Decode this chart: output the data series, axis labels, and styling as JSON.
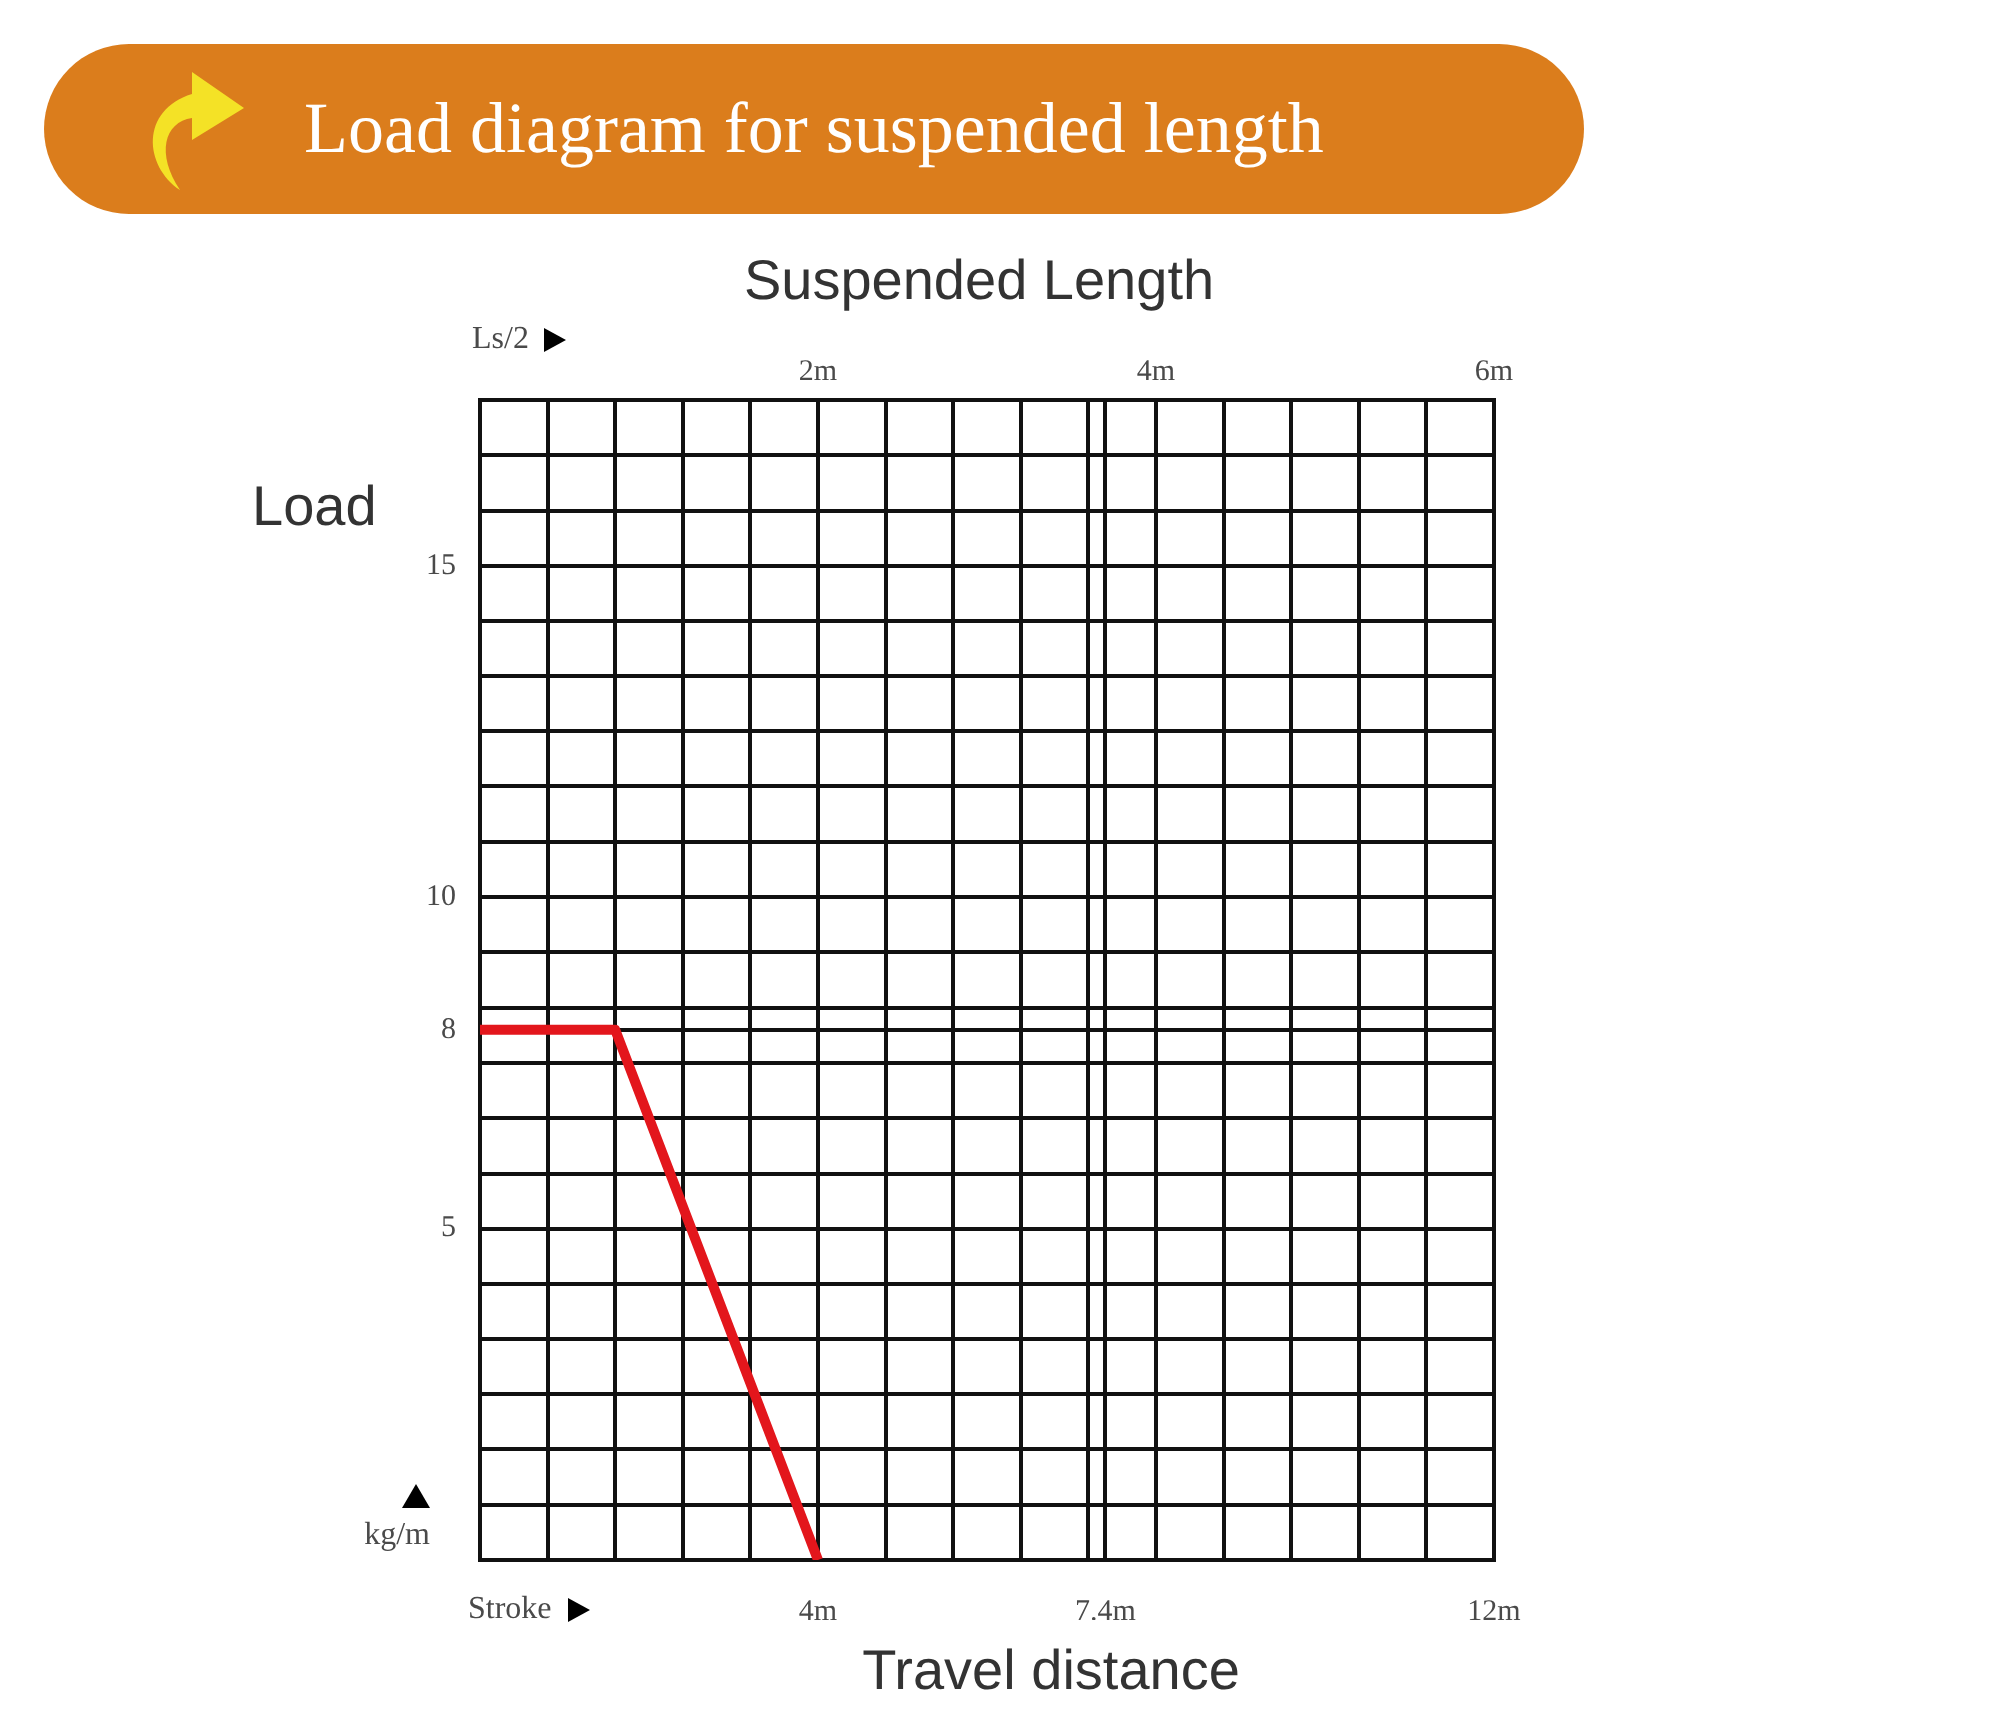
{
  "chart_data": {
    "type": "line",
    "title": "Load diagram for suspended length",
    "xlabel": "Travel distance",
    "x2label": "Suspended Length",
    "ylabel": "Load",
    "annotations": [
      "Ls/2",
      "Stroke",
      "kg/m"
    ],
    "x": [
      0,
      1.6,
      4
    ],
    "series": [
      {
        "color": "#e3161c",
        "values": [
          8,
          8,
          0
        ]
      }
    ],
    "xlim": [
      0,
      12
    ],
    "xticks": [
      {
        "value": 0.8,
        "label": null
      },
      {
        "value": 1.6,
        "label": null
      },
      {
        "value": 2.4,
        "label": null
      },
      {
        "value": 3.2,
        "label": null
      },
      {
        "value": 4,
        "label": "4m"
      },
      {
        "value": 4.8,
        "label": null
      },
      {
        "value": 5.6,
        "label": null
      },
      {
        "value": 6.4,
        "label": null
      },
      {
        "value": 7.2,
        "label": null
      },
      {
        "value": 7.4,
        "label": "7.4m"
      },
      {
        "value": 8,
        "label": null
      },
      {
        "value": 8.8,
        "label": null
      },
      {
        "value": 9.6,
        "label": null
      },
      {
        "value": 10.4,
        "label": null
      },
      {
        "value": 11.2,
        "label": null
      },
      {
        "value": 12,
        "label": "12m"
      }
    ],
    "x2lim": [
      0,
      6
    ],
    "x2ticks": [
      {
        "value": 2,
        "label": "2m"
      },
      {
        "value": 4,
        "label": "4m"
      },
      {
        "value": 6,
        "label": "6m"
      }
    ],
    "ylim": [
      0,
      17.5
    ],
    "yticks": [
      {
        "value": 0,
        "label": null
      },
      {
        "value": 0.83,
        "label": null
      },
      {
        "value": 1.67,
        "label": null
      },
      {
        "value": 2.5,
        "label": null
      },
      {
        "value": 3.33,
        "label": null
      },
      {
        "value": 4.17,
        "label": null
      },
      5,
      {
        "value": 5.83,
        "label": null
      },
      {
        "value": 6.67,
        "label": null
      },
      {
        "value": 7.5,
        "label": null
      },
      8,
      {
        "value": 8.33,
        "label": null
      },
      {
        "value": 9.17,
        "label": null
      },
      10,
      {
        "value": 10.83,
        "label": null
      },
      {
        "value": 11.67,
        "label": null
      },
      {
        "value": 12.5,
        "label": null
      },
      {
        "value": 13.33,
        "label": null
      },
      {
        "value": 14.17,
        "label": null
      },
      15,
      {
        "value": 15.83,
        "label": null
      },
      {
        "value": 16.67,
        "label": null
      },
      {
        "value": 17.5,
        "label": null
      }
    ],
    "grid": true,
    "marker": "none",
    "line_style": "solid"
  }
}
